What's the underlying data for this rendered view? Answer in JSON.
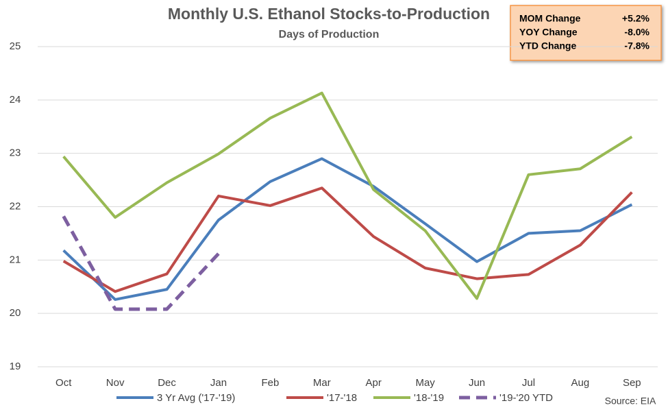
{
  "chart_data": {
    "type": "line",
    "title": "Monthly U.S. Ethanol Stocks-to-Production",
    "subtitle": "Days of Production",
    "categories": [
      "Oct",
      "Nov",
      "Dec",
      "Jan",
      "Feb",
      "Mar",
      "Apr",
      "May",
      "Jun",
      "Jul",
      "Aug",
      "Sep"
    ],
    "series": [
      {
        "name": "3 Yr Avg ('17-'19)",
        "color": "#4a7ebb",
        "dashed": false,
        "values": [
          21.18,
          20.26,
          20.45,
          21.75,
          22.47,
          22.9,
          22.38,
          21.68,
          20.97,
          21.5,
          21.55,
          22.04
        ]
      },
      {
        "name": "'17-'18",
        "color": "#be4b48",
        "dashed": false,
        "values": [
          20.98,
          20.41,
          20.74,
          22.2,
          22.02,
          22.35,
          21.44,
          20.85,
          20.65,
          20.73,
          21.28,
          22.27
        ]
      },
      {
        "name": "'18-'19",
        "color": "#98b954",
        "dashed": false,
        "values": [
          22.94,
          21.8,
          22.45,
          22.99,
          23.66,
          24.13,
          22.32,
          21.55,
          20.28,
          22.6,
          22.71,
          23.31
        ]
      },
      {
        "name": "'19-'20 YTD",
        "color": "#7d5fa0",
        "dashed": true,
        "values": [
          21.82,
          20.08,
          20.08,
          21.12,
          null,
          null,
          null,
          null,
          null,
          null,
          null,
          null
        ]
      }
    ],
    "ylim": [
      19,
      25
    ],
    "yticks": [
      19,
      20,
      21,
      22,
      23,
      24,
      25
    ],
    "grid": true,
    "summary": [
      {
        "label": "MOM Change",
        "value": "+5.2%"
      },
      {
        "label": "YOY Change",
        "value": "-8.0%"
      },
      {
        "label": "YTD Change",
        "value": "-7.8%"
      }
    ],
    "source": "Source: EIA"
  }
}
